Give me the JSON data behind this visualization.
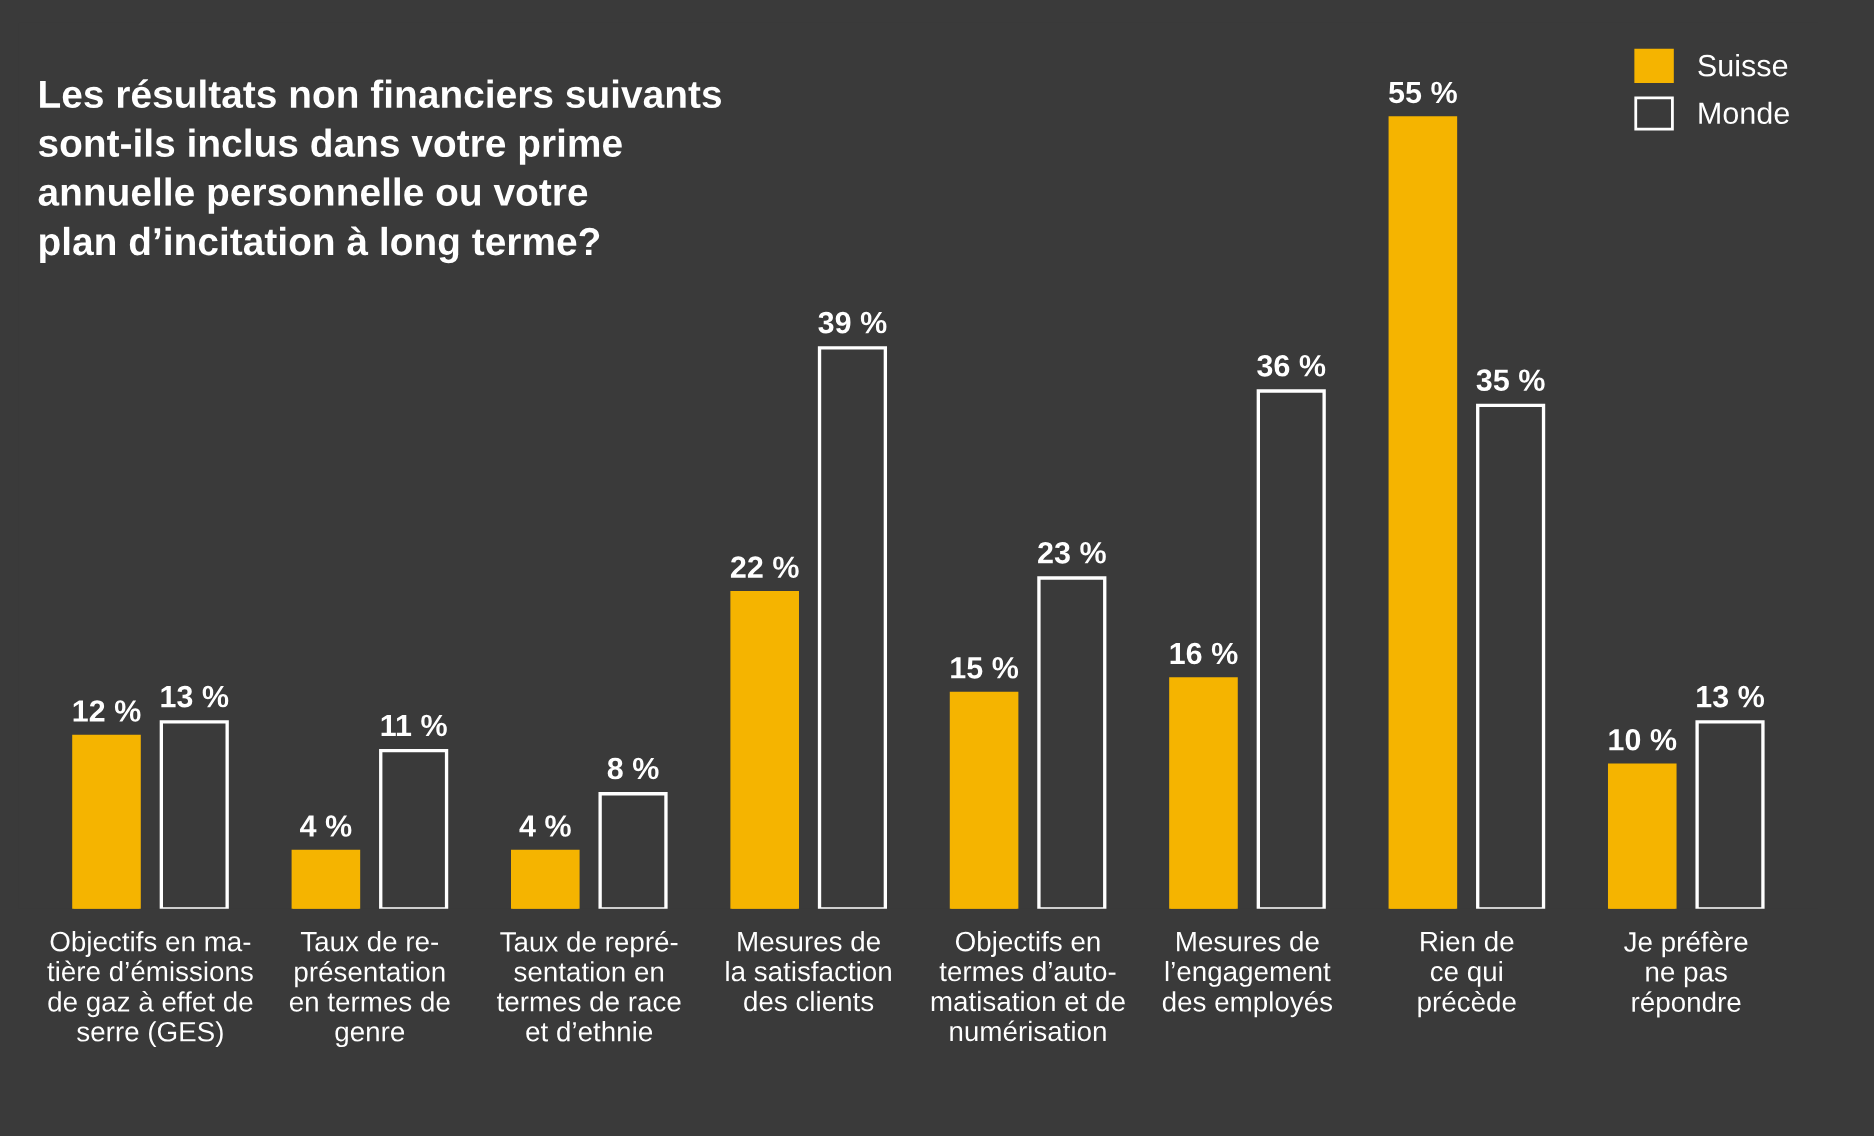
{
  "chart_data": {
    "type": "bar",
    "title": "Les résultats non financiers suivants\nsont-ils inclus dans votre prime\nannuelle personnelle ou votre\nplan d’incitation à long terme?",
    "categories": [
      "Objectifs en ma-\ntière d’émissions\nde gaz à effet de\nserre (GES)",
      "Taux de re-\nprésentation\nen termes de\ngenre",
      "Taux de repré-\nsentation en\ntermes de race\net d’ethnie",
      "Mesures de\nla satisfaction\ndes clients",
      "Objectifs en\ntermes d’auto-\nmatisation et de\nnumérisation",
      "Mesures de\nl’engagement\ndes employés",
      "Rien de\nce qui\nprécède",
      "Je préfère\nne pas\nrépondre"
    ],
    "series": [
      {
        "name": "Suisse",
        "color": "#f5b400",
        "values": [
          12,
          4,
          4,
          22,
          15,
          16,
          55,
          10
        ],
        "value_labels": [
          "12 %",
          "4 %",
          "4 %",
          "22 %",
          "15 %",
          "16 %",
          "55 %",
          "10 %"
        ]
      },
      {
        "name": "Monde",
        "color": "#ffffff",
        "values": [
          13,
          11,
          8,
          39,
          23,
          36,
          35,
          13
        ],
        "value_labels": [
          "13 %",
          "11 %",
          "8 %",
          "39 %",
          "23 %",
          "36 %",
          "35 %",
          "13 %"
        ]
      }
    ],
    "legend": "top right",
    "grid": false
  }
}
